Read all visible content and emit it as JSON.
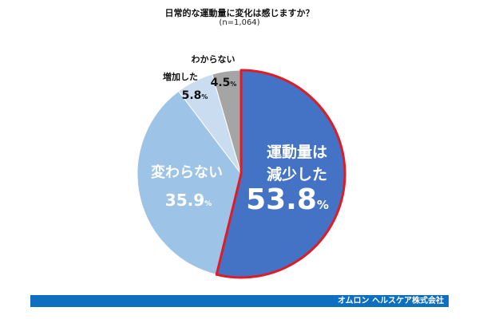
{
  "title": "日常的な運動量に変化は感じますか？",
  "subtitle": "(n=1,064)",
  "footer": "オムロン ヘルスケア株式会社",
  "chart_data": {
    "type": "pie",
    "title": "日常的な運動量に変化は感じますか？",
    "subtitle": "(n=1,064)",
    "slices": [
      {
        "label_lines": [
          "運動量は",
          "減少した"
        ],
        "value": 53.8,
        "value_text": "53.8",
        "unit": "%",
        "color": "#4472c4",
        "highlight": "#e01b24"
      },
      {
        "label_lines": [
          "変わらない"
        ],
        "value": 35.9,
        "value_text": "35.9",
        "unit": "%",
        "color": "#9dc3e6"
      },
      {
        "label_lines": [
          "増加した"
        ],
        "value": 5.8,
        "value_text": "5.8",
        "unit": "%",
        "color": "#c9dcf0"
      },
      {
        "label_lines": [
          "わからない"
        ],
        "value": 4.5,
        "value_text": "4.5",
        "unit": "%",
        "color": "#a5a5a5"
      }
    ]
  }
}
